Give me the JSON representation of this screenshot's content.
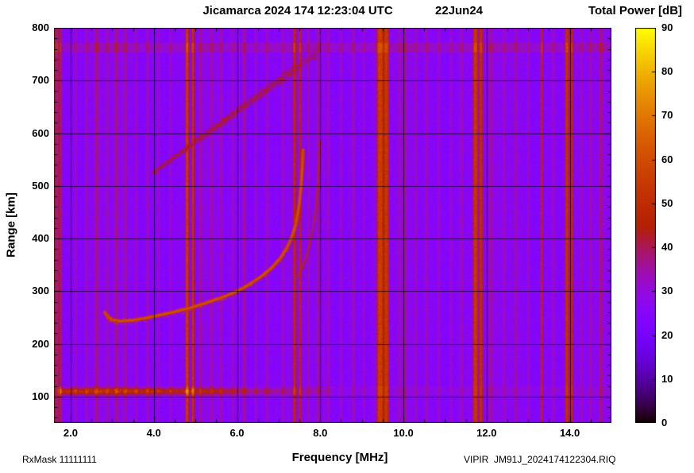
{
  "header": {
    "title": "Jicamarca 2024 174 12:23:04 UTC",
    "date": "22Jun24",
    "colorbar_title": "Total Power [dB]"
  },
  "footer": {
    "rxmask": "RxMask 11111111",
    "file": "VIPIR  JM91J_2024174122304.RIQ"
  },
  "chart_data": {
    "type": "heatmap",
    "title": "Jicamarca 2024 174 12:23:04 UTC  22Jun24",
    "xlabel": "Frequency [MHz]",
    "ylabel": "Range [km]",
    "colorbar_label": "Total Power [dB]",
    "xlim": [
      1.6,
      15.0
    ],
    "ylim": [
      50,
      800
    ],
    "zlim": [
      0,
      90
    ],
    "xticks": [
      2,
      4,
      6,
      8,
      10,
      12,
      14
    ],
    "xtick_labels": [
      "2.0",
      "4.0",
      "6.0",
      "8.0",
      "10.0",
      "12.0",
      "14.0"
    ],
    "yticks": [
      100,
      200,
      300,
      400,
      500,
      600,
      700,
      800
    ],
    "ytick_labels": [
      "100",
      "200",
      "300",
      "400",
      "500",
      "600",
      "700",
      "800"
    ],
    "zticks": [
      0,
      10,
      20,
      30,
      40,
      50,
      60,
      70,
      80,
      90
    ],
    "ztick_labels": [
      "0",
      "10",
      "20",
      "30",
      "40",
      "50",
      "60",
      "70",
      "80",
      "90"
    ],
    "grid": true,
    "colormap": "black-violet-red-orange-yellow (gnuplot rgbformulae 7,5,15)",
    "background_db": 26,
    "noise_db": 3.5,
    "rfi_stripes": [
      [
        1.52,
        0.025,
        26
      ],
      [
        1.6,
        0.03,
        29
      ],
      [
        1.68,
        0.025,
        24
      ],
      [
        1.76,
        0.02,
        22
      ],
      [
        2.12,
        0.03,
        7
      ],
      [
        2.38,
        0.03,
        8
      ],
      [
        2.62,
        0.04,
        9
      ],
      [
        2.88,
        0.03,
        7
      ],
      [
        3.1,
        0.04,
        10
      ],
      [
        3.32,
        0.03,
        8
      ],
      [
        3.58,
        0.03,
        6
      ],
      [
        3.85,
        0.03,
        8
      ],
      [
        4.12,
        0.03,
        6
      ],
      [
        4.4,
        0.03,
        7
      ],
      [
        4.8,
        0.035,
        29
      ],
      [
        4.94,
        0.03,
        26
      ],
      [
        5.12,
        0.03,
        10
      ],
      [
        5.38,
        0.03,
        6
      ],
      [
        5.62,
        0.03,
        8
      ],
      [
        5.9,
        0.03,
        6
      ],
      [
        6.18,
        0.035,
        11
      ],
      [
        6.45,
        0.03,
        8
      ],
      [
        6.72,
        0.03,
        6
      ],
      [
        7.1,
        0.03,
        7
      ],
      [
        7.38,
        0.03,
        22
      ],
      [
        7.52,
        0.025,
        20
      ],
      [
        7.72,
        0.025,
        8
      ],
      [
        7.95,
        0.03,
        9
      ],
      [
        8.2,
        0.03,
        7
      ],
      [
        8.5,
        0.03,
        6
      ],
      [
        8.8,
        0.035,
        8
      ],
      [
        9.05,
        0.03,
        6
      ],
      [
        9.44,
        0.07,
        29
      ],
      [
        9.59,
        0.05,
        27
      ],
      [
        9.9,
        0.03,
        7
      ],
      [
        10.02,
        0.03,
        11
      ],
      [
        10.3,
        0.03,
        6
      ],
      [
        10.55,
        0.03,
        8
      ],
      [
        10.85,
        0.03,
        6
      ],
      [
        11.15,
        0.03,
        8
      ],
      [
        11.4,
        0.03,
        6
      ],
      [
        11.73,
        0.05,
        29
      ],
      [
        11.86,
        0.04,
        25
      ],
      [
        12.1,
        0.035,
        8
      ],
      [
        12.42,
        0.03,
        6
      ],
      [
        12.7,
        0.03,
        8
      ],
      [
        13.0,
        0.03,
        6
      ],
      [
        13.32,
        0.022,
        22
      ],
      [
        13.6,
        0.03,
        7
      ],
      [
        13.93,
        0.04,
        27
      ],
      [
        14.04,
        0.03,
        23
      ],
      [
        14.28,
        0.03,
        6
      ],
      [
        14.5,
        0.025,
        9
      ],
      [
        14.75,
        0.035,
        10
      ]
    ],
    "e_region_echo": {
      "f_range": [
        1.7,
        8.3
      ],
      "peak_range_km": 110,
      "width_km": 6.5,
      "peak_db": 50
    },
    "row_bands": [
      {
        "range_km": [
          753,
          772
        ],
        "db_boost": 6
      },
      {
        "range_km": [
          103,
          119
        ],
        "db_boost": 2.5
      }
    ],
    "f_trace_o_mode": [
      [
        2.82,
        260
      ],
      [
        2.9,
        251
      ],
      [
        3.0,
        246
      ],
      [
        3.2,
        243
      ],
      [
        3.5,
        245
      ],
      [
        3.8,
        249
      ],
      [
        4.1,
        254
      ],
      [
        4.5,
        261
      ],
      [
        4.9,
        269
      ],
      [
        5.3,
        279
      ],
      [
        5.7,
        290
      ],
      [
        6.0,
        300
      ],
      [
        6.3,
        313
      ],
      [
        6.6,
        329
      ],
      [
        6.85,
        346
      ],
      [
        7.05,
        364
      ],
      [
        7.2,
        383
      ],
      [
        7.32,
        404
      ],
      [
        7.42,
        430
      ],
      [
        7.49,
        462
      ],
      [
        7.54,
        500
      ],
      [
        7.57,
        538
      ],
      [
        7.59,
        568
      ]
    ],
    "f_trace_x_mode": [
      [
        7.46,
        330
      ],
      [
        7.6,
        352
      ],
      [
        7.72,
        382
      ],
      [
        7.82,
        420
      ],
      [
        7.9,
        465
      ],
      [
        7.95,
        515
      ],
      [
        7.98,
        560
      ],
      [
        8.0,
        585
      ]
    ],
    "second_hop_trace": {
      "start": [
        3.95,
        525
      ],
      "end": [
        7.92,
        755
      ],
      "db": 44,
      "width_km_start": 10,
      "width_km_end": 26
    }
  }
}
